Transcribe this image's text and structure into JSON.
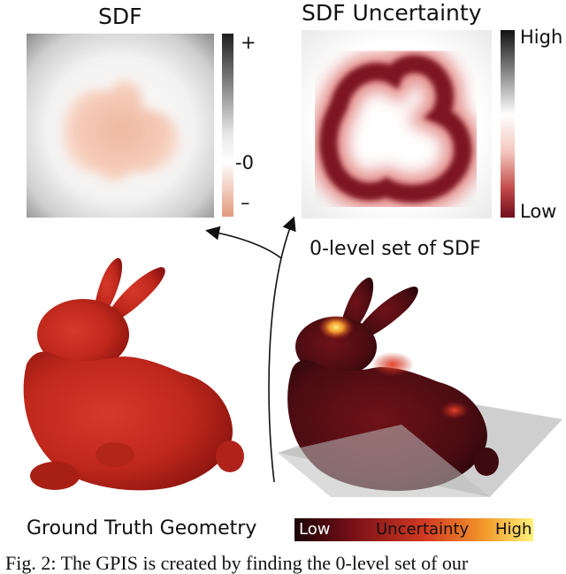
{
  "panels": {
    "sdf": {
      "title": "SDF",
      "scale_top": "+",
      "scale_mid": "-0",
      "scale_bottom": "–"
    },
    "uncertainty": {
      "title": "SDF Uncertainty",
      "scale_top": "High",
      "scale_bottom": "Low"
    }
  },
  "labels": {
    "zero_level": "0-level set of SDF",
    "ground_truth": "Ground Truth Geometry"
  },
  "colorbar": {
    "low": "Low",
    "mid": "Uncertainty",
    "high": "High"
  },
  "caption": "Fig. 2: The GPIS is created by finding the 0-level set of our",
  "colors": {
    "bunny_red": "#c0281c",
    "dark_red": "#7a1018",
    "sdf_negative": "#e9a98e",
    "plane": "#c7c7c7"
  }
}
